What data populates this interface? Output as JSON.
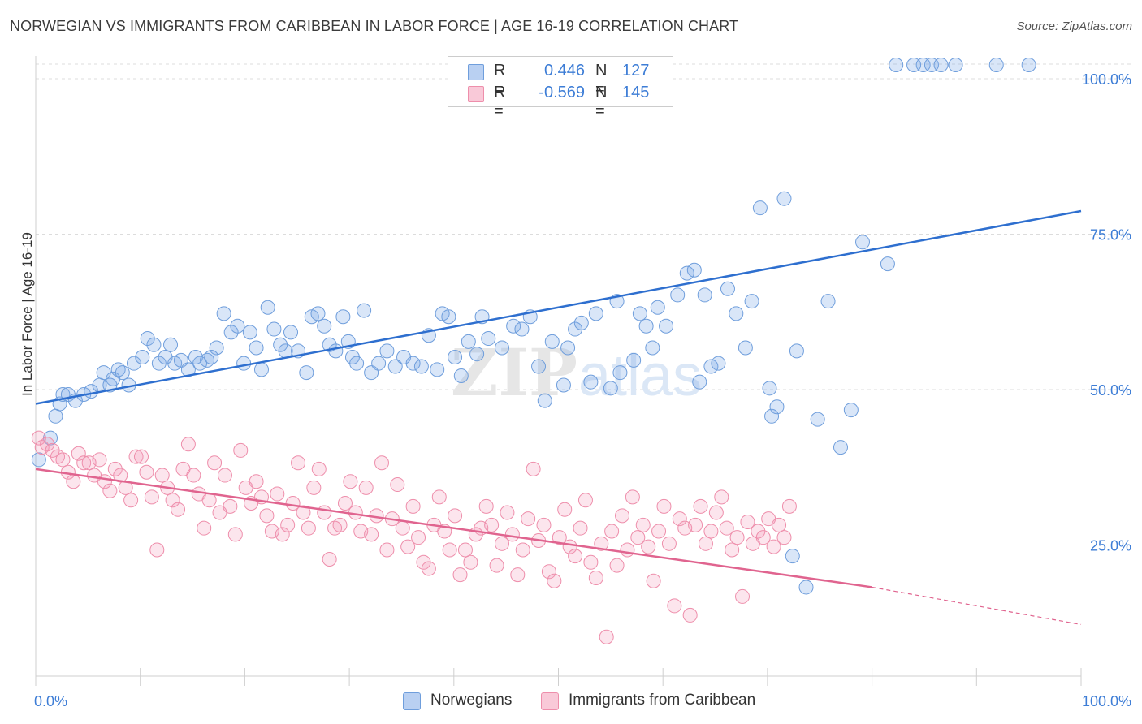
{
  "title": "NORWEGIAN VS IMMIGRANTS FROM CARIBBEAN IN LABOR FORCE | AGE 16-19 CORRELATION CHART",
  "source": "Source: ZipAtlas.com",
  "watermark": "ZIPatlas",
  "legend": {
    "rows": [
      {
        "r_label": "R =",
        "r_value": "0.446",
        "n_label": "N =",
        "n_value": "127",
        "color": "#6fa0e0"
      },
      {
        "r_label": "R =",
        "r_value": "-0.569",
        "n_label": "N =",
        "n_value": "145",
        "color": "#f08cab"
      }
    ]
  },
  "bottom_legend": {
    "norwegians": "Norwegians",
    "caribbean": "Immigrants from Caribbean"
  },
  "chart_data": {
    "type": "scatter",
    "title": "NORWEGIAN VS IMMIGRANTS FROM CARIBBEAN IN LABOR FORCE | AGE 16-19 CORRELATION CHART",
    "ylabel": "In Labor Force | Age 16-19",
    "xlabel": "",
    "xlim": [
      0,
      100
    ],
    "ylim": [
      0,
      100
    ],
    "x_tick_labels": [
      "0.0%",
      "100.0%"
    ],
    "y_tick_labels": [
      "25.0%",
      "50.0%",
      "75.0%",
      "100.0%"
    ],
    "y_ticks": [
      25,
      50,
      75,
      100
    ],
    "grid": true,
    "legend_position": "top-center",
    "colors": {
      "norwegians": "#5b8fd6",
      "caribbean": "#ee86a8",
      "blue_line": "#2e6fcf",
      "pink_line": "#e0648f",
      "axis_text": "#3d7dd6"
    },
    "series": [
      {
        "name": "Norwegians",
        "r": 0.446,
        "n": 127,
        "trend": {
          "x": [
            0,
            100
          ],
          "y": [
            45.5,
            76.5
          ]
        },
        "points": [
          [
            0.3,
            36.5
          ],
          [
            1.4,
            40
          ],
          [
            1.9,
            43.5
          ],
          [
            2.3,
            45.5
          ],
          [
            2.6,
            47
          ],
          [
            3.1,
            47
          ],
          [
            3.8,
            46
          ],
          [
            4.6,
            47
          ],
          [
            5.3,
            47.5
          ],
          [
            6.1,
            48.5
          ],
          [
            6.5,
            50.5
          ],
          [
            7.4,
            49.5
          ],
          [
            7.1,
            48.5
          ],
          [
            7.9,
            51
          ],
          [
            8.3,
            50.5
          ],
          [
            8.9,
            48.5
          ],
          [
            9.4,
            52
          ],
          [
            10.2,
            53
          ],
          [
            10.7,
            56
          ],
          [
            11.3,
            55
          ],
          [
            11.8,
            52
          ],
          [
            12.4,
            53
          ],
          [
            12.9,
            55
          ],
          [
            13.3,
            52
          ],
          [
            13.9,
            52.5
          ],
          [
            14.6,
            51
          ],
          [
            15.3,
            53
          ],
          [
            15.7,
            52
          ],
          [
            16.4,
            52.5
          ],
          [
            17.3,
            54.5
          ],
          [
            16.8,
            53
          ],
          [
            18,
            60
          ],
          [
            18.7,
            57
          ],
          [
            19.3,
            58
          ],
          [
            19.9,
            52
          ],
          [
            20.5,
            57
          ],
          [
            21.1,
            54.5
          ],
          [
            21.6,
            51
          ],
          [
            22.2,
            61
          ],
          [
            22.8,
            57.5
          ],
          [
            23.4,
            55
          ],
          [
            23.9,
            54
          ],
          [
            24.4,
            57
          ],
          [
            25.1,
            54
          ],
          [
            25.9,
            50.5
          ],
          [
            26.4,
            59.5
          ],
          [
            27,
            60
          ],
          [
            27.6,
            58
          ],
          [
            28.1,
            55
          ],
          [
            28.7,
            54
          ],
          [
            29.4,
            59.5
          ],
          [
            29.9,
            55.5
          ],
          [
            30.3,
            53
          ],
          [
            30.7,
            52
          ],
          [
            31.4,
            60.5
          ],
          [
            32.1,
            50.5
          ],
          [
            32.8,
            52
          ],
          [
            33.6,
            54
          ],
          [
            34.4,
            51.5
          ],
          [
            35.2,
            53
          ],
          [
            36.1,
            52
          ],
          [
            36.9,
            51.5
          ],
          [
            37.6,
            56.5
          ],
          [
            38.4,
            51
          ],
          [
            38.9,
            60
          ],
          [
            39.5,
            59.5
          ],
          [
            40.1,
            53
          ],
          [
            40.7,
            50
          ],
          [
            41.4,
            55.5
          ],
          [
            42.2,
            53.5
          ],
          [
            42.7,
            59.5
          ],
          [
            43.3,
            56
          ],
          [
            44.6,
            54.5
          ],
          [
            45.7,
            58
          ],
          [
            46.5,
            57.5
          ],
          [
            47.3,
            59.5
          ],
          [
            48.1,
            51.5
          ],
          [
            48.7,
            46
          ],
          [
            49.4,
            55.5
          ],
          [
            50.5,
            48.5
          ],
          [
            50.9,
            54.5
          ],
          [
            51.6,
            57.5
          ],
          [
            52.2,
            58.5
          ],
          [
            53.1,
            49
          ],
          [
            53.6,
            60
          ],
          [
            55,
            48
          ],
          [
            55.6,
            62
          ],
          [
            55.9,
            50.5
          ],
          [
            57.2,
            52.5
          ],
          [
            57.8,
            60
          ],
          [
            58.4,
            58
          ],
          [
            59,
            54.5
          ],
          [
            59.5,
            61
          ],
          [
            60.3,
            58
          ],
          [
            61.4,
            63
          ],
          [
            62.3,
            66.5
          ],
          [
            63,
            67
          ],
          [
            63.5,
            49
          ],
          [
            64,
            63
          ],
          [
            64.6,
            51.5
          ],
          [
            65.3,
            52
          ],
          [
            66.2,
            64
          ],
          [
            67,
            60
          ],
          [
            67.9,
            54.5
          ],
          [
            68.5,
            62
          ],
          [
            69.3,
            77
          ],
          [
            70.2,
            48
          ],
          [
            70.4,
            43.5
          ],
          [
            70.9,
            45
          ],
          [
            71.6,
            78.5
          ],
          [
            72.4,
            21
          ],
          [
            72.8,
            54
          ],
          [
            73.7,
            16
          ],
          [
            74.8,
            43
          ],
          [
            75.8,
            62
          ],
          [
            77,
            38.5
          ],
          [
            78,
            44.5
          ],
          [
            79.1,
            71.5
          ],
          [
            81.5,
            68
          ],
          [
            82.3,
            100
          ],
          [
            84,
            100
          ],
          [
            84.9,
            100
          ],
          [
            85.7,
            100
          ],
          [
            86.6,
            100
          ],
          [
            88,
            100
          ],
          [
            91.9,
            100
          ],
          [
            95,
            100
          ]
        ]
      },
      {
        "name": "Immigrants from Caribbean",
        "r": -0.569,
        "n": 145,
        "trend": {
          "x": [
            0,
            80
          ],
          "y": [
            35,
            16
          ],
          "dashed_to": {
            "x": 100,
            "y": 10
          }
        },
        "points": [
          [
            0.3,
            40
          ],
          [
            0.6,
            38.5
          ],
          [
            1.1,
            39
          ],
          [
            1.6,
            38
          ],
          [
            2.1,
            37
          ],
          [
            2.6,
            36.5
          ],
          [
            3.1,
            34.5
          ],
          [
            3.6,
            33
          ],
          [
            4.1,
            37.5
          ],
          [
            4.6,
            36
          ],
          [
            5.1,
            36
          ],
          [
            5.6,
            34
          ],
          [
            6.1,
            36.5
          ],
          [
            6.6,
            33
          ],
          [
            7.1,
            31.5
          ],
          [
            7.6,
            35
          ],
          [
            8.1,
            34
          ],
          [
            8.6,
            32
          ],
          [
            9.1,
            30
          ],
          [
            9.6,
            37
          ],
          [
            10.1,
            37
          ],
          [
            10.6,
            34.5
          ],
          [
            11.1,
            30.5
          ],
          [
            11.6,
            22
          ],
          [
            12.1,
            34
          ],
          [
            12.6,
            32
          ],
          [
            13.1,
            30
          ],
          [
            13.6,
            28.5
          ],
          [
            14.1,
            35
          ],
          [
            14.6,
            39
          ],
          [
            15.1,
            34
          ],
          [
            15.6,
            31
          ],
          [
            16.1,
            25.5
          ],
          [
            16.6,
            30
          ],
          [
            17.1,
            36
          ],
          [
            17.6,
            28
          ],
          [
            18.1,
            34
          ],
          [
            18.6,
            29
          ],
          [
            19.1,
            24.5
          ],
          [
            19.6,
            38
          ],
          [
            20.1,
            32
          ],
          [
            20.6,
            29.5
          ],
          [
            21.1,
            33
          ],
          [
            21.6,
            30.5
          ],
          [
            22.1,
            27.5
          ],
          [
            22.6,
            25
          ],
          [
            23.1,
            31
          ],
          [
            23.6,
            24.5
          ],
          [
            24.1,
            26
          ],
          [
            24.6,
            29.5
          ],
          [
            25.1,
            36
          ],
          [
            25.6,
            28
          ],
          [
            26.1,
            25.5
          ],
          [
            26.6,
            32
          ],
          [
            27.1,
            35
          ],
          [
            27.6,
            28
          ],
          [
            28.1,
            20.5
          ],
          [
            28.6,
            25.5
          ],
          [
            29.1,
            26
          ],
          [
            29.6,
            29.5
          ],
          [
            30.1,
            33
          ],
          [
            30.6,
            28
          ],
          [
            31.1,
            25
          ],
          [
            31.6,
            32
          ],
          [
            32.1,
            24.5
          ],
          [
            32.6,
            27.5
          ],
          [
            33.1,
            36
          ],
          [
            33.6,
            22
          ],
          [
            34.1,
            27
          ],
          [
            34.6,
            32.5
          ],
          [
            35.1,
            25.5
          ],
          [
            35.6,
            22.5
          ],
          [
            36.1,
            29
          ],
          [
            36.6,
            24
          ],
          [
            37.1,
            20
          ],
          [
            37.6,
            19
          ],
          [
            38.1,
            26
          ],
          [
            38.6,
            30.5
          ],
          [
            39.1,
            25
          ],
          [
            39.6,
            22
          ],
          [
            40.1,
            27.5
          ],
          [
            40.6,
            18
          ],
          [
            41.1,
            22
          ],
          [
            41.6,
            20
          ],
          [
            42.1,
            24.5
          ],
          [
            42.6,
            25.5
          ],
          [
            43.1,
            29
          ],
          [
            43.6,
            26
          ],
          [
            44.1,
            19.5
          ],
          [
            44.6,
            23
          ],
          [
            45.1,
            28
          ],
          [
            45.6,
            24.5
          ],
          [
            46.1,
            18
          ],
          [
            46.6,
            22
          ],
          [
            47.1,
            27
          ],
          [
            47.6,
            35
          ],
          [
            48.1,
            23.5
          ],
          [
            48.6,
            26
          ],
          [
            49.1,
            18.5
          ],
          [
            49.6,
            17
          ],
          [
            50.1,
            24
          ],
          [
            50.6,
            28.5
          ],
          [
            51.1,
            22.5
          ],
          [
            51.6,
            21
          ],
          [
            52.1,
            25.5
          ],
          [
            52.6,
            30
          ],
          [
            53.1,
            20
          ],
          [
            53.6,
            17.5
          ],
          [
            54.1,
            23
          ],
          [
            54.6,
            8
          ],
          [
            55.1,
            25
          ],
          [
            55.6,
            19.5
          ],
          [
            56.1,
            27.5
          ],
          [
            56.6,
            22
          ],
          [
            57.1,
            30.5
          ],
          [
            57.6,
            24
          ],
          [
            58.1,
            26
          ],
          [
            58.6,
            22.5
          ],
          [
            59.1,
            17
          ],
          [
            59.6,
            25
          ],
          [
            60.1,
            29
          ],
          [
            60.6,
            23
          ],
          [
            61.1,
            13
          ],
          [
            61.6,
            27
          ],
          [
            62.1,
            25.5
          ],
          [
            62.6,
            11.5
          ],
          [
            63.1,
            26
          ],
          [
            63.6,
            29
          ],
          [
            64.1,
            23
          ],
          [
            64.6,
            25
          ],
          [
            65.1,
            28
          ],
          [
            65.6,
            30.5
          ],
          [
            66.1,
            25.5
          ],
          [
            66.6,
            22
          ],
          [
            67.1,
            24
          ],
          [
            67.6,
            14.5
          ],
          [
            68.1,
            26.5
          ],
          [
            68.6,
            23
          ],
          [
            69.1,
            25
          ],
          [
            69.6,
            24
          ],
          [
            70.1,
            27
          ],
          [
            70.6,
            22.5
          ],
          [
            71.1,
            26
          ],
          [
            71.6,
            24
          ],
          [
            72.1,
            29
          ]
        ]
      }
    ]
  }
}
